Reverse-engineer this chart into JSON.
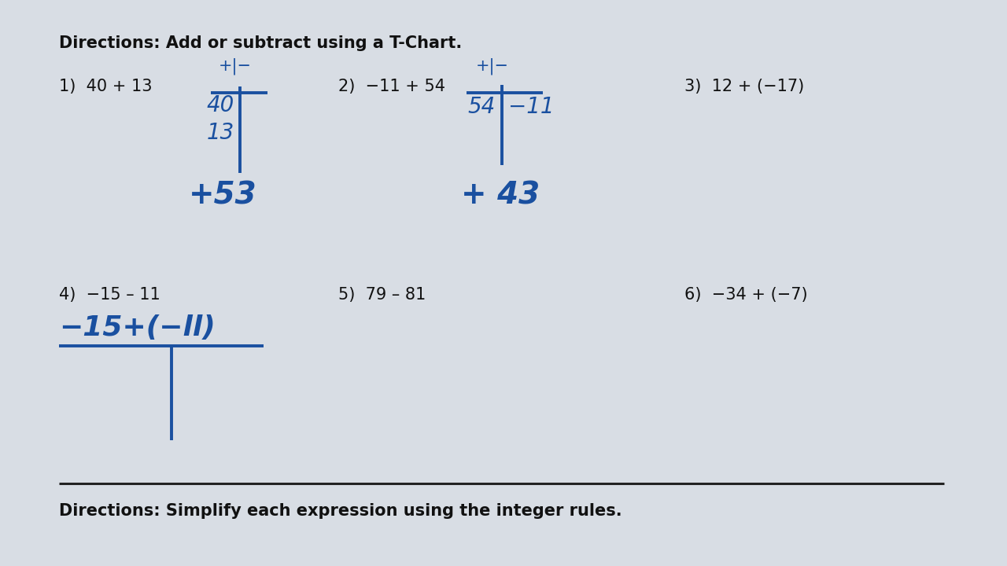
{
  "background_color": "#d8dde4",
  "handwriting_color": "#1a50a0",
  "printed_color": "#111111",
  "direction1": "Directions: Add or subtract using a T-Chart.",
  "direction2": "Directions: Simplify each expression using the integer rules.",
  "prob1": "1)  40 + 13",
  "prob2": "2)  −11 + 54",
  "prob3": "3)  12 + (−17)",
  "prob4": "4)  −15 – 11",
  "prob5": "5)  79 – 81",
  "prob6": "6)  −34 + (−7)",
  "t1_label": "+|−",
  "t1_num1": "40",
  "t1_num2": "13",
  "t1_answer": "+53",
  "t2_label": "+|−",
  "t2_left": "54",
  "t2_right": "−11",
  "t2_answer": "+ 43",
  "t4_expr": "−15+(−ll)"
}
